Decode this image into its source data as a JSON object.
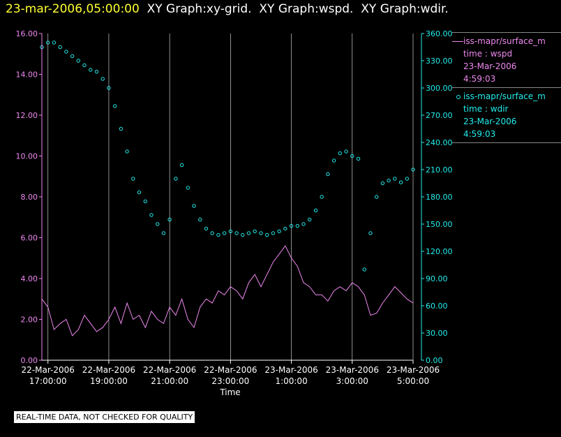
{
  "header": {
    "date": "23-mar-2006,05:00:00",
    "parts": [
      "XY Graph:xy-grid.",
      "XY Graph:wspd.",
      "XY Graph:wdir."
    ]
  },
  "colors": {
    "wspd": "#ee88ee",
    "wdir": "#22eeee",
    "grid": "#cccccc",
    "header_date": "#ffff33"
  },
  "legend": [
    {
      "name": "iss-mapr/surface_m",
      "line": "time : wspd",
      "date": "23-Mar-2006",
      "time": "4:59:03",
      "symbol": "line",
      "color": "#ee88ee"
    },
    {
      "name": "iss-mapr/surface_m",
      "line": "time : wdir",
      "date": "23-Mar-2006",
      "time": "4:59:03",
      "symbol": "circle",
      "color": "#22eeee"
    }
  ],
  "quality_note": "REAL-TIME DATA, NOT CHECKED FOR QUALITY",
  "chart_data": {
    "type": "scatter",
    "xlabel": "Time",
    "x_range_hours": [
      16.8,
      29.0
    ],
    "x_ticks": [
      {
        "hour": 17,
        "date": "22-Mar-2006",
        "time": "17:00:00"
      },
      {
        "hour": 19,
        "date": "22-Mar-2006",
        "time": "19:00:00"
      },
      {
        "hour": 21,
        "date": "22-Mar-2006",
        "time": "21:00:00"
      },
      {
        "hour": 23,
        "date": "22-Mar-2006",
        "time": "23:00:00"
      },
      {
        "hour": 25,
        "date": "23-Mar-2006",
        "time": "1:00:00"
      },
      {
        "hour": 27,
        "date": "23-Mar-2006",
        "time": "3:00:00"
      },
      {
        "hour": 29,
        "date": "23-Mar-2006",
        "time": "5:00:00"
      }
    ],
    "y_left": {
      "ylim": [
        0,
        16
      ],
      "ticks": [
        "0.00",
        "2.00",
        "4.00",
        "6.00",
        "8.00",
        "10.00",
        "12.00",
        "14.00",
        "16.00"
      ]
    },
    "y_right": {
      "ylim": [
        0,
        360
      ],
      "ticks": [
        "0.00",
        "30.00",
        "60.00",
        "90.00",
        "120.00",
        "150.00",
        "180.00",
        "210.00",
        "240.00",
        "270.00",
        "300.00",
        "330.00",
        "360.00"
      ]
    },
    "grid": "vertical",
    "legend_placement": "right",
    "series": [
      {
        "name": "iss-mapr/surface_m time : wspd",
        "axis": "left",
        "style": "line",
        "x": [
          16.8,
          17.0,
          17.2,
          17.4,
          17.6,
          17.8,
          18.0,
          18.2,
          18.4,
          18.6,
          18.8,
          19.0,
          19.2,
          19.4,
          19.6,
          19.8,
          20.0,
          20.2,
          20.4,
          20.6,
          20.8,
          21.0,
          21.2,
          21.4,
          21.6,
          21.8,
          22.0,
          22.2,
          22.4,
          22.6,
          22.8,
          23.0,
          23.2,
          23.4,
          23.6,
          23.8,
          24.0,
          24.2,
          24.4,
          24.6,
          24.8,
          25.0,
          25.2,
          25.4,
          25.6,
          25.8,
          26.0,
          26.2,
          26.4,
          26.6,
          26.8,
          27.0,
          27.2,
          27.4,
          27.6,
          27.8,
          28.0,
          28.2,
          28.4,
          28.6,
          28.8,
          29.0
        ],
        "values": [
          3.0,
          2.6,
          1.5,
          1.8,
          2.0,
          1.2,
          1.5,
          2.2,
          1.8,
          1.4,
          1.6,
          2.0,
          2.6,
          1.8,
          2.8,
          2.0,
          2.2,
          1.6,
          2.4,
          2.0,
          1.8,
          2.6,
          2.2,
          3.0,
          2.0,
          1.6,
          2.6,
          3.0,
          2.8,
          3.4,
          3.2,
          3.6,
          3.4,
          3.0,
          3.8,
          4.2,
          3.6,
          4.2,
          4.8,
          5.2,
          5.6,
          5.0,
          4.6,
          3.8,
          3.6,
          3.2,
          3.2,
          2.9,
          3.4,
          3.6,
          3.4,
          3.8,
          3.6,
          3.2,
          2.2,
          2.3,
          2.8,
          3.2,
          3.6,
          3.3,
          3.0,
          2.8
        ]
      },
      {
        "name": "iss-mapr/surface_m time : wdir",
        "axis": "right",
        "style": "circles",
        "x": [
          16.8,
          17.0,
          17.2,
          17.4,
          17.6,
          17.8,
          18.0,
          18.2,
          18.4,
          18.6,
          18.8,
          19.0,
          19.2,
          19.4,
          19.6,
          19.8,
          20.0,
          20.2,
          20.4,
          20.6,
          20.8,
          21.0,
          21.2,
          21.4,
          21.6,
          21.8,
          22.0,
          22.2,
          22.4,
          22.6,
          22.8,
          23.0,
          23.2,
          23.4,
          23.6,
          23.8,
          24.0,
          24.2,
          24.4,
          24.6,
          24.8,
          25.0,
          25.2,
          25.4,
          25.6,
          25.8,
          26.0,
          26.2,
          26.4,
          26.6,
          26.8,
          27.0,
          27.2,
          27.4,
          27.6,
          27.8,
          28.0,
          28.2,
          28.4,
          28.6,
          28.8,
          29.0
        ],
        "values": [
          345,
          350,
          350,
          345,
          340,
          335,
          330,
          325,
          320,
          318,
          310,
          300,
          280,
          255,
          230,
          200,
          185,
          175,
          160,
          150,
          140,
          155,
          200,
          215,
          190,
          170,
          155,
          145,
          140,
          138,
          140,
          142,
          140,
          138,
          140,
          142,
          140,
          138,
          140,
          142,
          145,
          148,
          148,
          150,
          155,
          165,
          180,
          205,
          220,
          228,
          230,
          225,
          222,
          100,
          140,
          180,
          195,
          198,
          200,
          196,
          200,
          210
        ]
      }
    ]
  }
}
